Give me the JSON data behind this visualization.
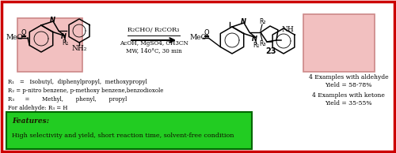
{
  "border_color": "#cc0000",
  "background_color": "#ffffff",
  "pink_highlight": "#f2c0c0",
  "pink_highlight_edge": "#cc8888",
  "green_box_bg": "#22cc22",
  "green_box_edge": "#006600",
  "reaction_cond1": "R₂CHO/ R₂COR₃",
  "reaction_cond2": "AcOH, MgSO4, CH3CN",
  "reaction_cond3": "MW, 140°C, 30 min",
  "r_groups_line1": "R₁   =   Isobutyl,  diphenylpropyl,  methoxypropyl",
  "r_groups_line2": "R₂ = p-nitro benzene, p-methoxy benzene,benzodioxole",
  "r_groups_line3": "R₃      =       Methyl,       phenyl,       propyl",
  "r_groups_line4": "For aldehyde: R₃ = H",
  "product_num": "23",
  "ex1": "4 Examples with aldehyde",
  "ex2": "Yield = 58-78%",
  "ex3": "4 Examples with ketone",
  "ex4": "Yield = 35-55%",
  "feat_label": "Features:",
  "feat_text": "High selectivity and yield, short reaction time, solvent-free condition"
}
